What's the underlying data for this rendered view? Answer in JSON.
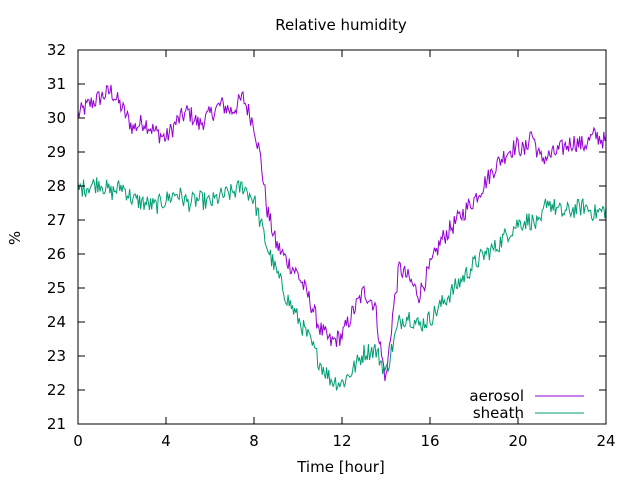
{
  "chart_data": {
    "type": "line",
    "title": "Relative humidity",
    "xlabel": "Time [hour]",
    "ylabel": "%",
    "xlim": [
      0,
      24
    ],
    "ylim": [
      21,
      32
    ],
    "xticks": [
      0,
      4,
      8,
      12,
      16,
      20,
      24
    ],
    "yticks": [
      21,
      22,
      23,
      24,
      25,
      26,
      27,
      28,
      29,
      30,
      31,
      32
    ],
    "grid": false,
    "legend_position": "bottom-right",
    "series": [
      {
        "name": "aerosol",
        "color": "#9400d3",
        "x": [
          0,
          0.5,
          1,
          1.5,
          2,
          2.5,
          3,
          3.5,
          4,
          4.5,
          5,
          5.5,
          6,
          6.5,
          7,
          7.5,
          8,
          8.3,
          8.6,
          9,
          9.5,
          10,
          10.5,
          11,
          11.5,
          12,
          12.5,
          13,
          13.5,
          13.8,
          14,
          14.3,
          14.6,
          15,
          15.5,
          16,
          16.5,
          17,
          17.5,
          18,
          18.5,
          19,
          19.5,
          20,
          20.3,
          20.6,
          21,
          21.5,
          22,
          22.5,
          23,
          23.5,
          24
        ],
        "y": [
          30.1,
          30.4,
          30.6,
          30.8,
          30.3,
          29.7,
          29.9,
          29.6,
          29.4,
          29.9,
          30.2,
          29.8,
          30.1,
          30.4,
          30.2,
          30.6,
          29.8,
          28.8,
          27.3,
          26.3,
          25.8,
          25.4,
          24.7,
          23.8,
          23.4,
          23.6,
          24.3,
          24.9,
          24.5,
          23.0,
          22.3,
          24.2,
          25.6,
          25.3,
          24.8,
          25.6,
          26.4,
          26.8,
          27.2,
          27.6,
          28.1,
          28.6,
          29.0,
          29.2,
          29.0,
          29.6,
          28.8,
          28.9,
          29.1,
          29.3,
          29.2,
          29.5,
          29.3
        ]
      },
      {
        "name": "sheath",
        "color": "#009e73",
        "x": [
          0,
          0.5,
          1,
          1.5,
          2,
          2.5,
          3,
          3.5,
          4,
          4.5,
          5,
          5.5,
          6,
          6.5,
          7,
          7.5,
          8,
          8.3,
          8.6,
          9,
          9.5,
          10,
          10.5,
          11,
          11.5,
          12,
          12.5,
          13,
          13.5,
          13.8,
          14,
          14.3,
          14.6,
          15,
          15.5,
          16,
          16.5,
          17,
          17.5,
          18,
          18.5,
          19,
          19.5,
          20,
          20.5,
          21,
          21.3,
          21.6,
          22,
          22.5,
          23,
          23.5,
          24
        ],
        "y": [
          27.9,
          28.0,
          28.1,
          27.8,
          28.0,
          27.6,
          27.5,
          27.4,
          27.6,
          27.8,
          27.5,
          27.6,
          27.5,
          27.7,
          27.8,
          28.0,
          27.6,
          26.9,
          26.2,
          25.5,
          24.7,
          24.1,
          23.5,
          22.8,
          22.3,
          22.2,
          22.6,
          23.1,
          23.2,
          22.8,
          22.5,
          23.3,
          24.0,
          24.2,
          23.9,
          24.1,
          24.5,
          24.9,
          25.3,
          25.7,
          26.0,
          26.2,
          26.6,
          26.9,
          27.0,
          26.8,
          27.6,
          27.4,
          27.2,
          27.3,
          27.4,
          27.2,
          27.3
        ]
      }
    ]
  }
}
